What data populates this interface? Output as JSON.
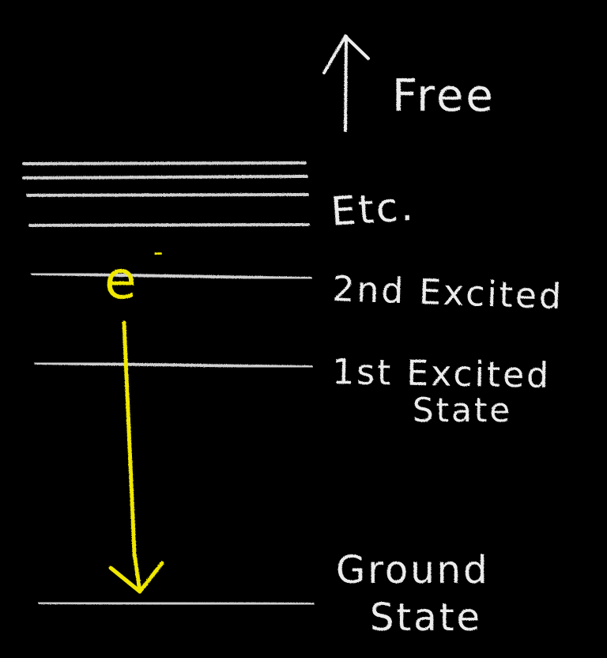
{
  "diagram": {
    "labels": {
      "free": "Free",
      "etc": "Etc.",
      "second_excited": "2nd Excited",
      "first_excited_line1": "1st Excited",
      "first_excited_line2": "State",
      "ground_line1": "Ground",
      "ground_line2": "State"
    },
    "electron": {
      "symbol": "e",
      "charge": "-"
    },
    "colors": {
      "background": "#000000",
      "chalk": "#ececec",
      "level_line": "#cfcfcf",
      "electron": "#f0e800"
    }
  }
}
